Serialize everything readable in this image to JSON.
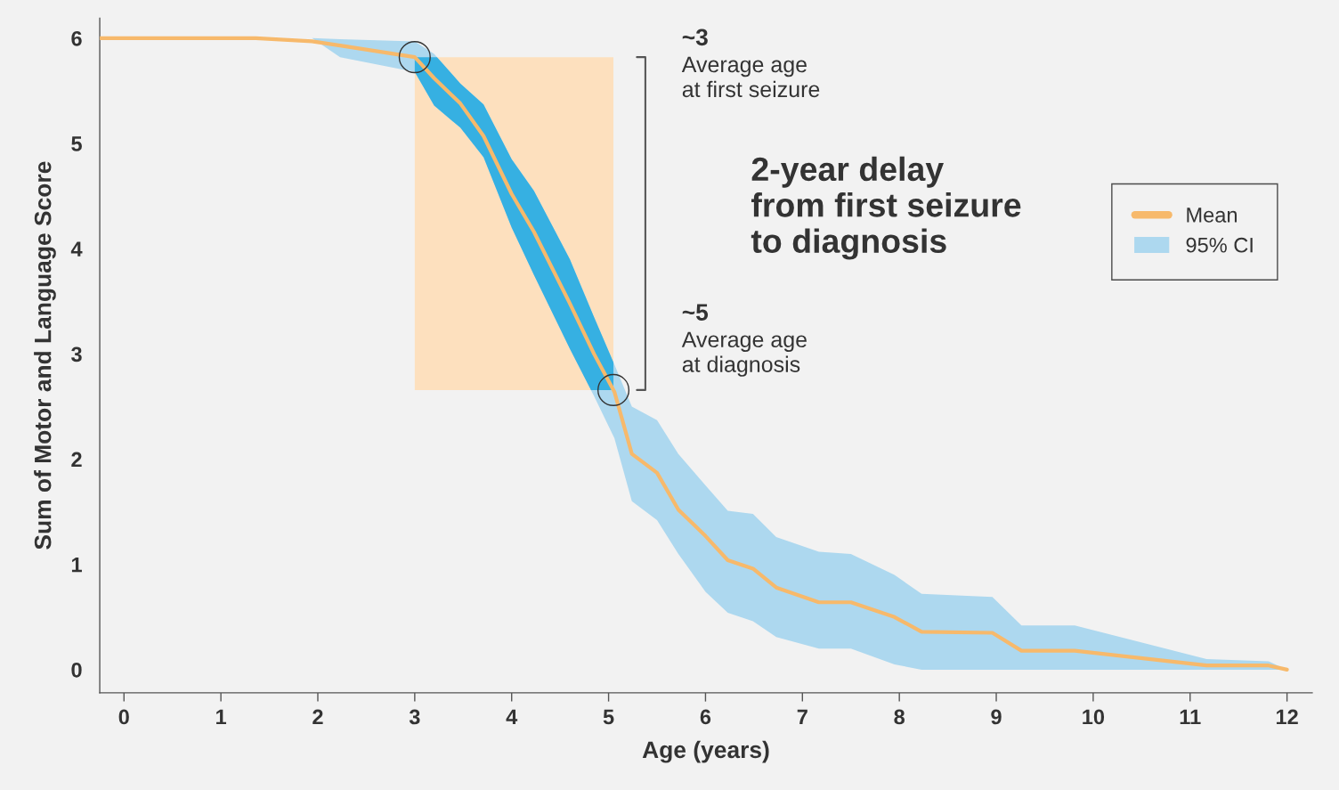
{
  "chart_data": {
    "type": "line",
    "xlabel": "Age (years)",
    "ylabel": "Sum of Motor and Language Score",
    "x": [
      -0.25,
      1.36,
      1.94,
      2.23,
      3,
      3.2,
      3.47,
      3.71,
      4.0,
      4.23,
      4.6,
      4.85,
      5.06,
      5.24,
      5.5,
      5.72,
      6.0,
      6.23,
      6.49,
      6.73,
      7.17,
      7.5,
      7.95,
      8.23,
      8.96,
      9.26,
      9.81,
      11.17,
      11.81,
      12
    ],
    "series": [
      {
        "name": "Mean",
        "type": "line",
        "color": "#f7b96b",
        "values": [
          6.0,
          6.0,
          5.97,
          5.93,
          5.82,
          5.62,
          5.38,
          5.07,
          4.52,
          4.16,
          3.48,
          3.0,
          2.64,
          2.05,
          1.87,
          1.52,
          1.27,
          1.04,
          0.96,
          0.78,
          0.64,
          0.64,
          0.5,
          0.36,
          0.35,
          0.18,
          0.18,
          0.04,
          0.04,
          0.0
        ],
        "lower": [
          6.0,
          6.0,
          6.0,
          5.82,
          5.68,
          5.36,
          5.15,
          4.87,
          4.2,
          3.75,
          3.05,
          2.6,
          2.2,
          1.6,
          1.42,
          1.1,
          0.74,
          0.54,
          0.46,
          0.31,
          0.2,
          0.2,
          0.05,
          0.0,
          0.0,
          0.0,
          0.0,
          0.0,
          0.0,
          0.0
        ],
        "upper": [
          6.0,
          6.0,
          6.0,
          5.99,
          5.97,
          5.85,
          5.57,
          5.37,
          4.85,
          4.55,
          3.9,
          3.35,
          2.9,
          2.5,
          2.37,
          2.05,
          1.75,
          1.51,
          1.48,
          1.26,
          1.12,
          1.1,
          0.9,
          0.72,
          0.69,
          0.42,
          0.42,
          0.1,
          0.08,
          0.0
        ]
      },
      {
        "name": "95% CI",
        "type": "area",
        "color": "#add8ef",
        "values": [
          null,
          null,
          null,
          null,
          null,
          null,
          null,
          null,
          null,
          null,
          null,
          null,
          null,
          null,
          null,
          null,
          null,
          null,
          null,
          null,
          null,
          null,
          null,
          null,
          null,
          null,
          null,
          null,
          null,
          null
        ]
      }
    ],
    "bands": [
      {
        "axis": "x",
        "from": 3,
        "to": 5.05,
        "color": "#fde0be"
      }
    ],
    "annotations": [
      "~3\nAverage age\nat first seizure",
      "~5\nAverage age\nat diagnosis",
      "2-year delay\nfrom first seizure\nto diagnosis"
    ],
    "xlim": [
      -0.25,
      12.26
    ],
    "ylim": [
      -0.22,
      6.19
    ],
    "xticks": [
      0,
      1,
      2,
      3,
      4,
      5,
      6,
      7,
      8,
      9,
      10,
      11,
      12
    ],
    "yticks": [
      0,
      1,
      2,
      3,
      4,
      5,
      6
    ],
    "grid": false,
    "legend": "top right"
  }
}
